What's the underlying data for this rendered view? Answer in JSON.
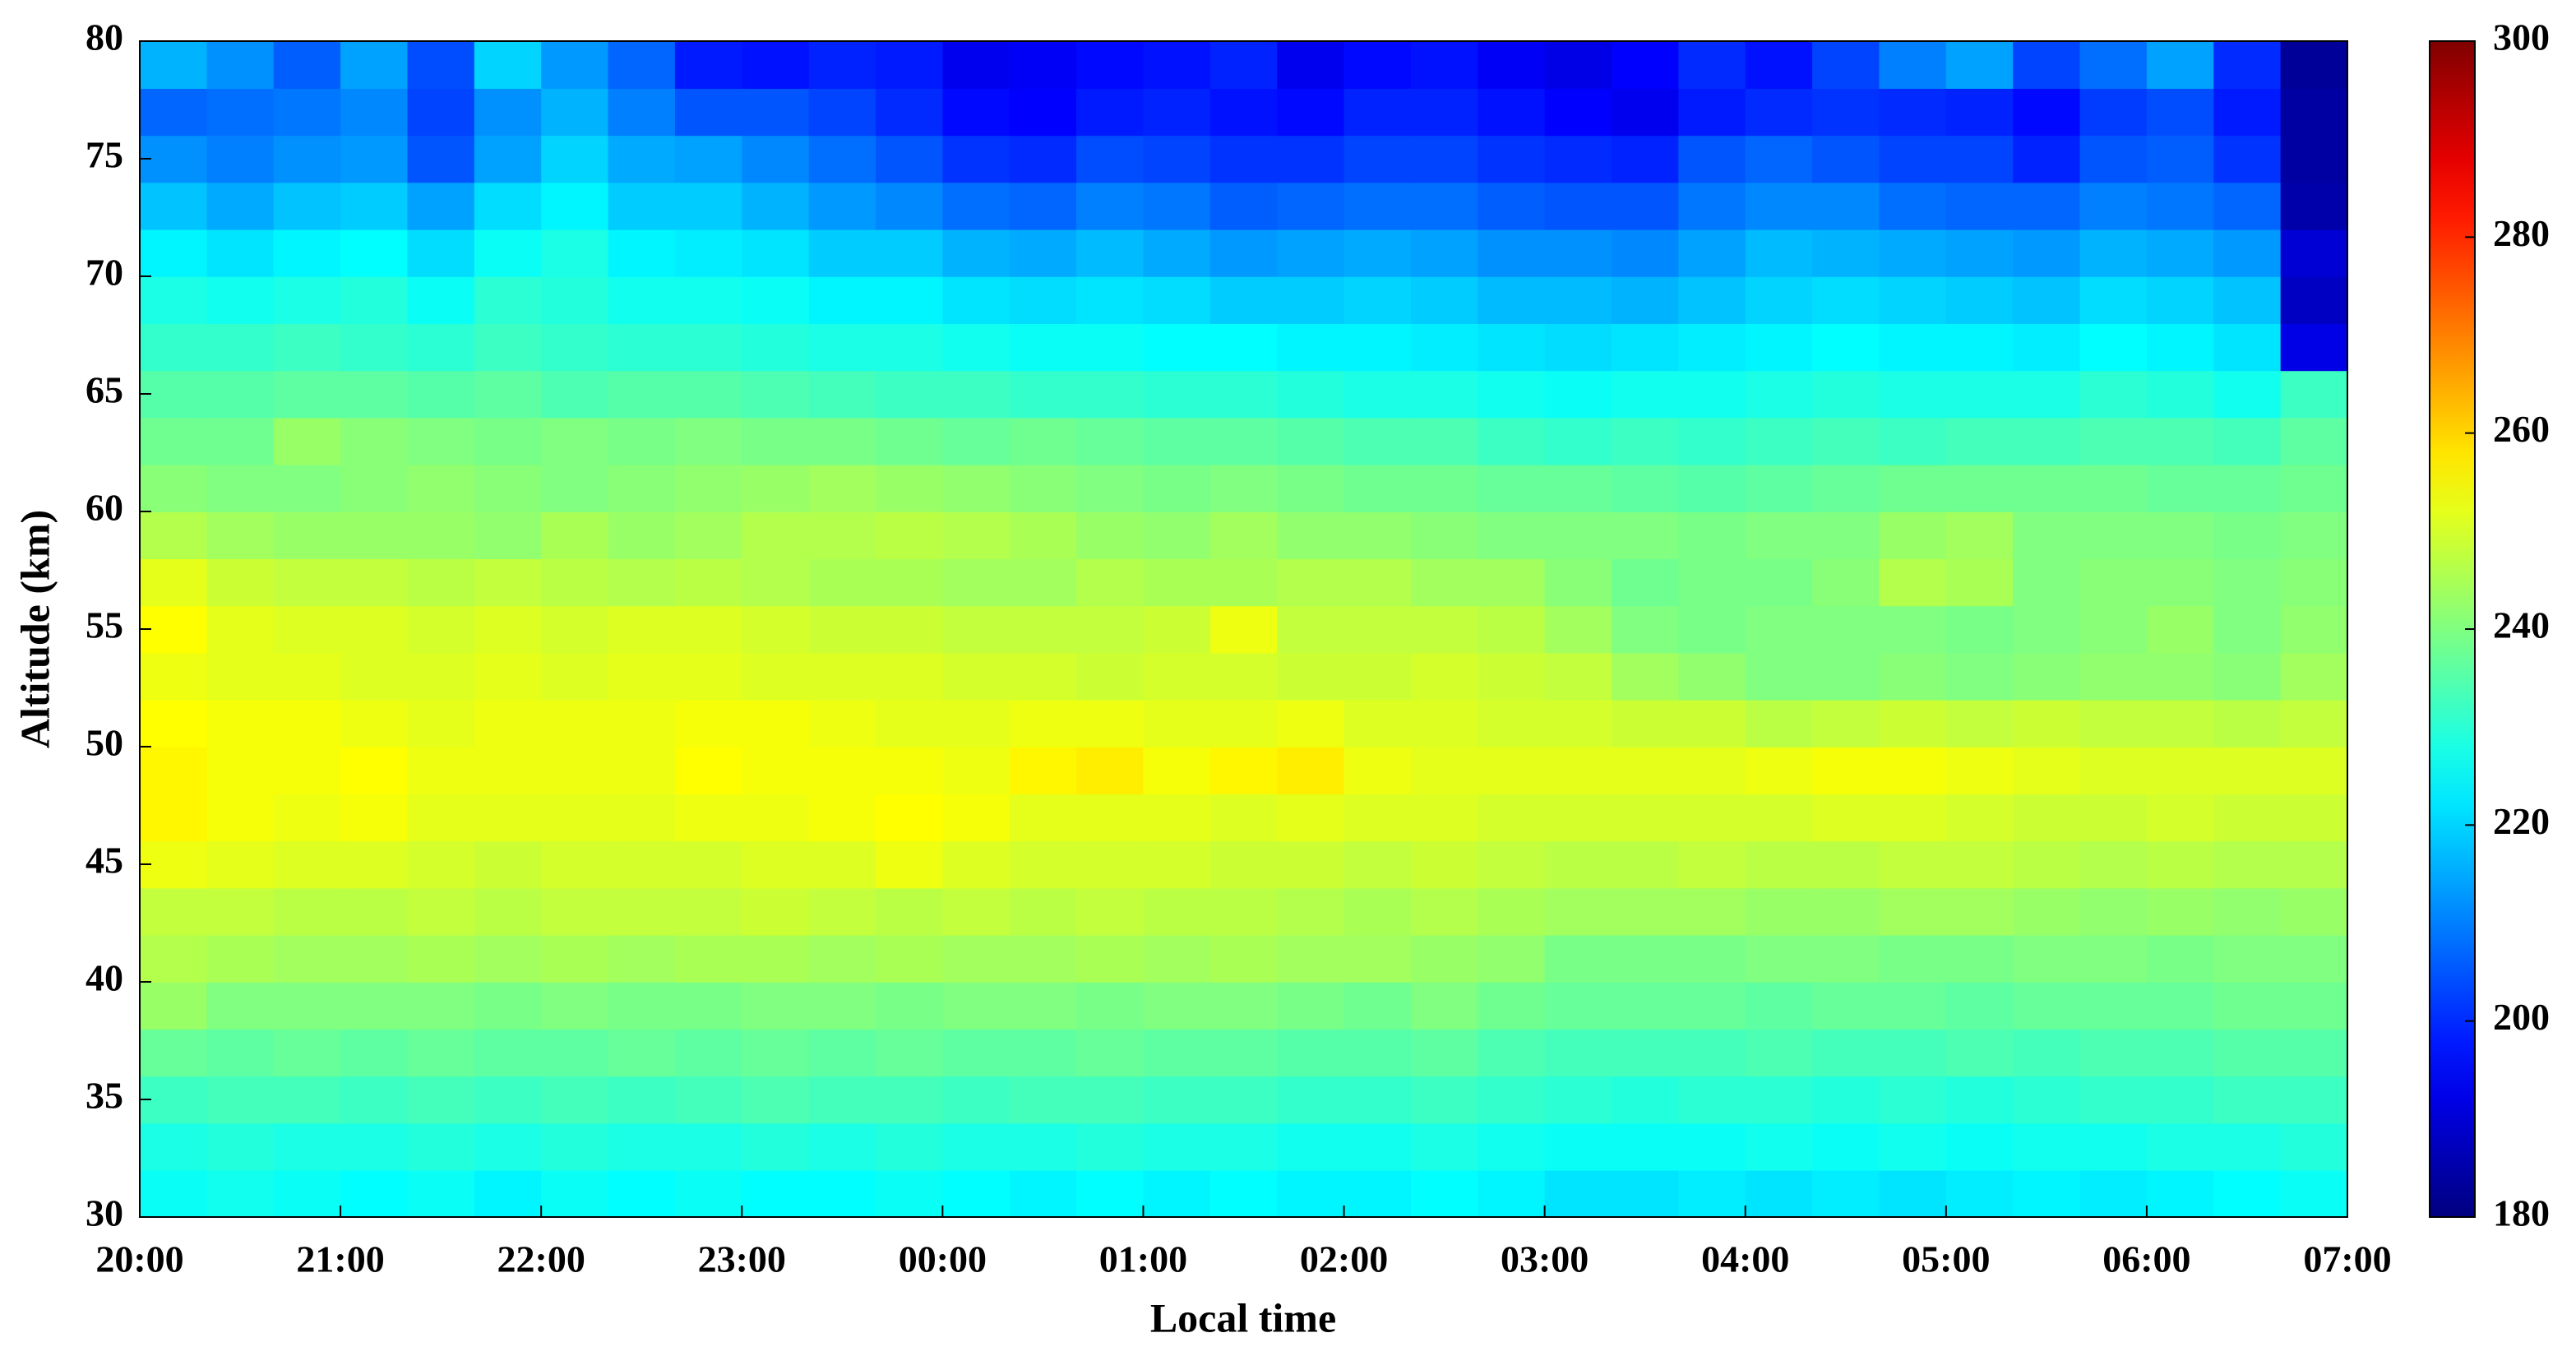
{
  "chart_data": {
    "type": "heatmap",
    "xlabel": "Local time",
    "ylabel": "Altitude (km)",
    "colormap": "jet",
    "x": [
      0,
      20,
      40,
      60,
      80,
      100,
      120,
      140,
      160,
      180,
      200,
      220,
      240,
      260,
      280,
      300,
      320,
      340,
      360,
      380,
      400,
      420,
      440,
      460,
      480,
      500,
      520,
      540,
      560,
      580,
      600,
      620,
      640
    ],
    "y": [
      30,
      32,
      34,
      36,
      38,
      40,
      42,
      44,
      46,
      48,
      50,
      52,
      54,
      56,
      58,
      60,
      62,
      64,
      66,
      68,
      70,
      72,
      74,
      76,
      78
    ],
    "xlim": [
      0,
      660
    ],
    "xticks": [
      {
        "value": 0,
        "label": "20:00"
      },
      {
        "value": 60,
        "label": "21:00"
      },
      {
        "value": 120,
        "label": "22:00"
      },
      {
        "value": 180,
        "label": "23:00"
      },
      {
        "value": 240,
        "label": "00:00"
      },
      {
        "value": 300,
        "label": "01:00"
      },
      {
        "value": 360,
        "label": "02:00"
      },
      {
        "value": 420,
        "label": "03:00"
      },
      {
        "value": 480,
        "label": "04:00"
      },
      {
        "value": 540,
        "label": "05:00"
      },
      {
        "value": 600,
        "label": "06:00"
      },
      {
        "value": 660,
        "label": "07:00"
      }
    ],
    "ylim": [
      30,
      80
    ],
    "yticks": [
      30,
      35,
      40,
      45,
      50,
      55,
      60,
      65,
      70,
      75,
      80
    ],
    "zlim": [
      180,
      300
    ],
    "zticks": [
      180,
      200,
      220,
      240,
      260,
      280,
      300
    ],
    "values": [
      [
        226,
        227,
        226,
        225,
        226,
        224,
        226,
        225,
        226,
        225,
        225,
        226,
        225,
        224,
        225,
        224,
        225,
        224,
        224,
        225,
        224,
        222,
        222,
        223,
        222,
        223,
        222,
        223,
        224,
        223,
        224,
        225,
        226
      ],
      [
        228,
        229,
        228,
        228,
        229,
        228,
        229,
        228,
        228,
        229,
        228,
        229,
        228,
        228,
        229,
        228,
        228,
        227,
        227,
        228,
        227,
        226,
        226,
        226,
        227,
        226,
        227,
        226,
        227,
        227,
        228,
        228,
        229
      ],
      [
        232,
        233,
        233,
        232,
        233,
        232,
        233,
        232,
        233,
        234,
        233,
        233,
        232,
        233,
        233,
        232,
        232,
        231,
        231,
        232,
        231,
        230,
        229,
        230,
        230,
        229,
        230,
        229,
        230,
        231,
        231,
        232,
        232
      ],
      [
        237,
        236,
        237,
        236,
        237,
        236,
        236,
        237,
        236,
        237,
        236,
        237,
        236,
        236,
        237,
        236,
        236,
        235,
        235,
        236,
        234,
        233,
        233,
        233,
        234,
        233,
        233,
        234,
        233,
        234,
        234,
        235,
        235
      ],
      [
        243,
        240,
        240,
        240,
        240,
        239,
        240,
        239,
        239,
        240,
        240,
        239,
        240,
        240,
        239,
        240,
        240,
        239,
        238,
        240,
        238,
        237,
        237,
        237,
        236,
        237,
        237,
        236,
        237,
        237,
        237,
        238,
        238
      ],
      [
        246,
        245,
        244,
        244,
        245,
        244,
        245,
        244,
        245,
        245,
        244,
        245,
        244,
        244,
        245,
        244,
        245,
        244,
        244,
        243,
        242,
        239,
        239,
        239,
        240,
        240,
        239,
        239,
        240,
        240,
        239,
        240,
        240
      ],
      [
        248,
        248,
        247,
        247,
        248,
        247,
        248,
        248,
        248,
        249,
        248,
        247,
        248,
        247,
        248,
        247,
        247,
        246,
        245,
        246,
        245,
        244,
        244,
        244,
        243,
        243,
        244,
        244,
        243,
        242,
        243,
        242,
        243
      ],
      [
        253,
        252,
        251,
        251,
        250,
        249,
        250,
        250,
        250,
        251,
        251,
        253,
        251,
        250,
        250,
        250,
        249,
        249,
        248,
        249,
        248,
        247,
        247,
        248,
        247,
        247,
        248,
        248,
        247,
        246,
        247,
        246,
        246
      ],
      [
        256,
        254,
        253,
        254,
        252,
        252,
        252,
        252,
        253,
        253,
        254,
        255,
        254,
        252,
        252,
        252,
        251,
        252,
        251,
        251,
        250,
        250,
        250,
        250,
        250,
        251,
        251,
        250,
        249,
        249,
        250,
        249,
        249
      ],
      [
        256,
        254,
        254,
        255,
        253,
        253,
        253,
        253,
        255,
        254,
        254,
        254,
        253,
        256,
        257,
        254,
        256,
        257,
        253,
        252,
        252,
        252,
        252,
        252,
        253,
        254,
        254,
        253,
        252,
        251,
        251,
        251,
        251
      ],
      [
        255,
        254,
        254,
        253,
        252,
        253,
        253,
        253,
        254,
        254,
        253,
        252,
        252,
        253,
        253,
        252,
        252,
        253,
        251,
        251,
        250,
        250,
        249,
        249,
        247,
        248,
        249,
        248,
        249,
        248,
        248,
        247,
        248
      ],
      [
        253,
        252,
        252,
        251,
        251,
        252,
        251,
        252,
        252,
        251,
        251,
        251,
        250,
        250,
        249,
        250,
        250,
        249,
        249,
        250,
        249,
        248,
        244,
        242,
        240,
        240,
        241,
        240,
        241,
        242,
        242,
        241,
        244
      ],
      [
        255,
        252,
        251,
        251,
        250,
        251,
        250,
        251,
        251,
        250,
        249,
        249,
        248,
        248,
        248,
        249,
        253,
        248,
        248,
        248,
        247,
        244,
        240,
        239,
        240,
        240,
        240,
        239,
        240,
        241,
        243,
        240,
        242
      ],
      [
        252,
        249,
        248,
        248,
        247,
        248,
        247,
        246,
        247,
        246,
        245,
        245,
        244,
        244,
        246,
        245,
        245,
        246,
        246,
        244,
        244,
        241,
        238,
        239,
        239,
        241,
        246,
        245,
        240,
        241,
        241,
        240,
        241
      ],
      [
        246,
        244,
        243,
        243,
        243,
        242,
        245,
        243,
        244,
        246,
        246,
        247,
        246,
        245,
        243,
        242,
        244,
        242,
        242,
        241,
        240,
        240,
        240,
        239,
        240,
        240,
        243,
        244,
        240,
        240,
        240,
        239,
        240
      ],
      [
        241,
        240,
        240,
        241,
        242,
        241,
        240,
        241,
        242,
        243,
        244,
        243,
        242,
        241,
        240,
        239,
        240,
        239,
        238,
        238,
        237,
        237,
        236,
        235,
        236,
        237,
        238,
        238,
        238,
        238,
        237,
        237,
        238
      ],
      [
        238,
        238,
        243,
        241,
        240,
        239,
        240,
        239,
        240,
        239,
        239,
        238,
        237,
        238,
        237,
        236,
        236,
        235,
        234,
        234,
        232,
        231,
        232,
        231,
        232,
        233,
        232,
        233,
        233,
        234,
        234,
        233,
        236
      ],
      [
        235,
        235,
        236,
        236,
        235,
        236,
        234,
        235,
        235,
        234,
        233,
        232,
        232,
        231,
        231,
        230,
        230,
        229,
        228,
        228,
        227,
        226,
        227,
        227,
        228,
        229,
        228,
        228,
        228,
        230,
        229,
        227,
        232
      ],
      [
        231,
        231,
        232,
        231,
        230,
        232,
        231,
        230,
        230,
        229,
        228,
        228,
        227,
        226,
        226,
        225,
        225,
        224,
        224,
        223,
        222,
        221,
        222,
        223,
        224,
        225,
        224,
        224,
        223,
        225,
        224,
        222,
        192
      ],
      [
        228,
        227,
        228,
        229,
        226,
        230,
        229,
        227,
        227,
        226,
        224,
        224,
        222,
        221,
        222,
        221,
        219,
        219,
        220,
        219,
        217,
        217,
        216,
        218,
        220,
        221,
        220,
        219,
        218,
        221,
        220,
        218,
        188
      ],
      [
        224,
        222,
        224,
        225,
        221,
        226,
        228,
        224,
        223,
        222,
        219,
        219,
        216,
        215,
        217,
        215,
        213,
        214,
        215,
        214,
        212,
        212,
        211,
        214,
        217,
        216,
        215,
        214,
        213,
        216,
        215,
        213,
        190
      ],
      [
        218,
        215,
        218,
        219,
        214,
        221,
        224,
        219,
        219,
        216,
        213,
        211,
        208,
        207,
        210,
        209,
        206,
        207,
        208,
        208,
        206,
        205,
        205,
        209,
        211,
        211,
        208,
        207,
        207,
        210,
        209,
        207,
        185
      ],
      [
        212,
        210,
        212,
        213,
        205,
        214,
        220,
        215,
        214,
        211,
        208,
        205,
        201,
        200,
        204,
        203,
        201,
        201,
        203,
        203,
        201,
        200,
        199,
        205,
        207,
        205,
        203,
        203,
        199,
        205,
        206,
        201,
        184
      ],
      [
        207,
        208,
        209,
        211,
        203,
        212,
        216,
        210,
        205,
        205,
        203,
        200,
        196,
        195,
        198,
        199,
        197,
        196,
        199,
        199,
        197,
        195,
        193,
        198,
        200,
        201,
        200,
        199,
        196,
        202,
        204,
        198,
        184
      ],
      [
        216,
        212,
        206,
        214,
        204,
        220,
        213,
        207,
        198,
        197,
        199,
        198,
        193,
        194,
        196,
        197,
        199,
        193,
        196,
        197,
        194,
        192,
        195,
        200,
        197,
        203,
        210,
        214,
        203,
        208,
        214,
        200,
        183
      ]
    ]
  }
}
